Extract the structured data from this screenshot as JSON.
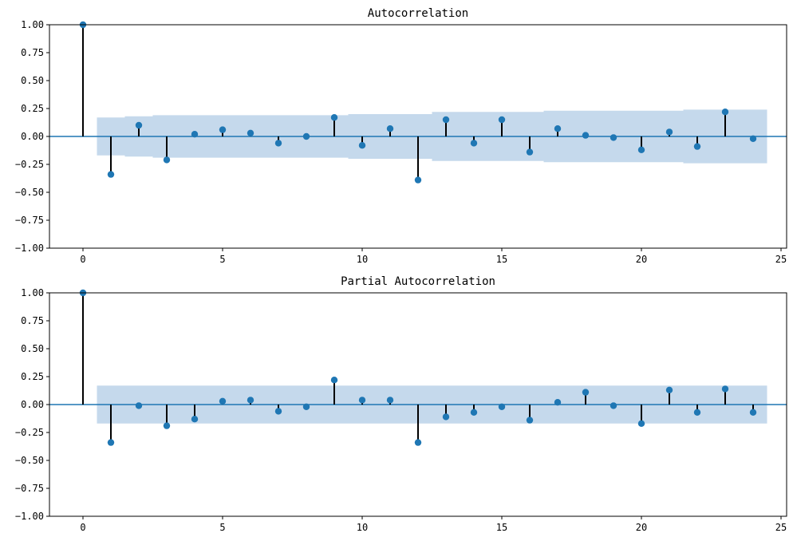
{
  "chart_data": [
    {
      "type": "stem",
      "title": "Autocorrelation",
      "xlabel": "",
      "ylabel": "",
      "xlim": [
        -1.2,
        25.2
      ],
      "ylim": [
        -1.0,
        1.0
      ],
      "xticks": [
        0,
        5,
        10,
        15,
        20,
        25
      ],
      "yticks": [
        -1.0,
        -0.75,
        -0.5,
        -0.25,
        0.0,
        0.25,
        0.5,
        0.75,
        1.0
      ],
      "ytick_labels": [
        "−1.00",
        "−0.75",
        "−0.50",
        "−0.25",
        "0.00",
        "0.25",
        "0.50",
        "0.75",
        "1.00"
      ],
      "grid": false,
      "colors": {
        "marker": "#1f77b4",
        "stem": "#000000",
        "band": "#c5d9ec",
        "zero_line": "#1f77b4"
      },
      "lags": [
        0,
        1,
        2,
        3,
        4,
        5,
        6,
        7,
        8,
        9,
        10,
        11,
        12,
        13,
        14,
        15,
        16,
        17,
        18,
        19,
        20,
        21,
        22,
        23,
        24
      ],
      "values": [
        1.0,
        -0.34,
        0.1,
        -0.21,
        0.02,
        0.06,
        0.03,
        -0.06,
        0.0,
        0.17,
        -0.08,
        0.07,
        -0.39,
        0.15,
        -0.06,
        0.15,
        -0.14,
        0.07,
        0.01,
        -0.01,
        -0.12,
        0.04,
        -0.09,
        0.22,
        -0.02
      ],
      "confint": [
        0.17,
        0.18,
        0.19,
        0.19,
        0.19,
        0.19,
        0.19,
        0.19,
        0.19,
        0.2,
        0.2,
        0.2,
        0.22,
        0.22,
        0.22,
        0.22,
        0.23,
        0.23,
        0.23,
        0.23,
        0.23,
        0.24,
        0.24,
        0.24
      ]
    },
    {
      "type": "stem",
      "title": "Partial Autocorrelation",
      "xlabel": "",
      "ylabel": "",
      "xlim": [
        -1.2,
        25.2
      ],
      "ylim": [
        -1.0,
        1.0
      ],
      "xticks": [
        0,
        5,
        10,
        15,
        20,
        25
      ],
      "yticks": [
        -1.0,
        -0.75,
        -0.5,
        -0.25,
        0.0,
        0.25,
        0.5,
        0.75,
        1.0
      ],
      "ytick_labels": [
        "−1.00",
        "−0.75",
        "−0.50",
        "−0.25",
        "0.00",
        "0.25",
        "0.50",
        "0.75",
        "1.00"
      ],
      "grid": false,
      "colors": {
        "marker": "#1f77b4",
        "stem": "#000000",
        "band": "#c5d9ec",
        "zero_line": "#1f77b4"
      },
      "lags": [
        0,
        1,
        2,
        3,
        4,
        5,
        6,
        7,
        8,
        9,
        10,
        11,
        12,
        13,
        14,
        15,
        16,
        17,
        18,
        19,
        20,
        21,
        22,
        23,
        24
      ],
      "values": [
        1.0,
        -0.34,
        -0.01,
        -0.19,
        -0.13,
        0.03,
        0.04,
        -0.06,
        -0.02,
        0.22,
        0.04,
        0.04,
        -0.34,
        -0.11,
        -0.07,
        -0.02,
        -0.14,
        0.02,
        0.11,
        -0.01,
        -0.17,
        0.13,
        -0.07,
        0.14,
        -0.07
      ],
      "confint": [
        0.17,
        0.17,
        0.17,
        0.17,
        0.17,
        0.17,
        0.17,
        0.17,
        0.17,
        0.17,
        0.17,
        0.17,
        0.17,
        0.17,
        0.17,
        0.17,
        0.17,
        0.17,
        0.17,
        0.17,
        0.17,
        0.17,
        0.17,
        0.17
      ]
    }
  ]
}
